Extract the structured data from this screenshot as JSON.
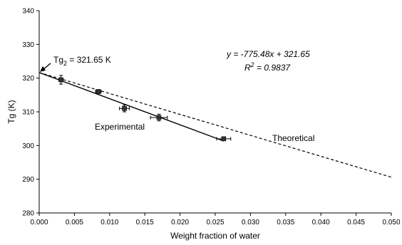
{
  "chart_data": {
    "type": "scatter",
    "xlabel": "Weight fraction of water",
    "ylabel": "Tg (K)",
    "xlim": [
      0.0,
      0.05
    ],
    "ylim": [
      280,
      340
    ],
    "x_ticks": [
      "0.000",
      "0.005",
      "0.010",
      "0.015",
      "0.020",
      "0.025",
      "0.030",
      "0.035",
      "0.040",
      "0.045",
      "0.050"
    ],
    "y_ticks": [
      "280",
      "290",
      "300",
      "310",
      "320",
      "330",
      "340"
    ],
    "grid": false,
    "series": [
      {
        "name": "Experimental",
        "marker": "square",
        "line": "solid",
        "points": [
          {
            "x": 0.0031,
            "y": 319.5,
            "xerr": 0.0003,
            "yerr": 1.3
          },
          {
            "x": 0.0084,
            "y": 316.0,
            "xerr": 0.0004,
            "yerr": 0.6
          },
          {
            "x": 0.0121,
            "y": 311.0,
            "xerr": 0.0007,
            "yerr": 1.0
          },
          {
            "x": 0.017,
            "y": 308.3,
            "xerr": 0.0012,
            "yerr": 1.0
          },
          {
            "x": 0.0262,
            "y": 302.0,
            "xerr": 0.001,
            "yerr": 0.3
          }
        ],
        "fit": {
          "slope": -775.48,
          "intercept": 321.65,
          "x_range": [
            0.0,
            0.0262
          ]
        }
      },
      {
        "name": "Theoretical",
        "line": "dashed",
        "x": [
          0.0,
          0.05
        ],
        "y": [
          321.65,
          290.6
        ]
      }
    ],
    "annotations": {
      "tg2": {
        "prefix": "Tg",
        "sub": "2",
        "suffix": " = 321.65 K",
        "x": 0.0,
        "y": 321.65
      },
      "equation": "y = -775.48x + 321.65",
      "r2_prefix": "R",
      "r2_sup": "2",
      "r2_suffix": " = 0.9837",
      "experimental_label": "Experimental",
      "theoretical_label": "Theoretical"
    },
    "colors": {
      "line": "#000000",
      "marker": "#333333"
    }
  }
}
